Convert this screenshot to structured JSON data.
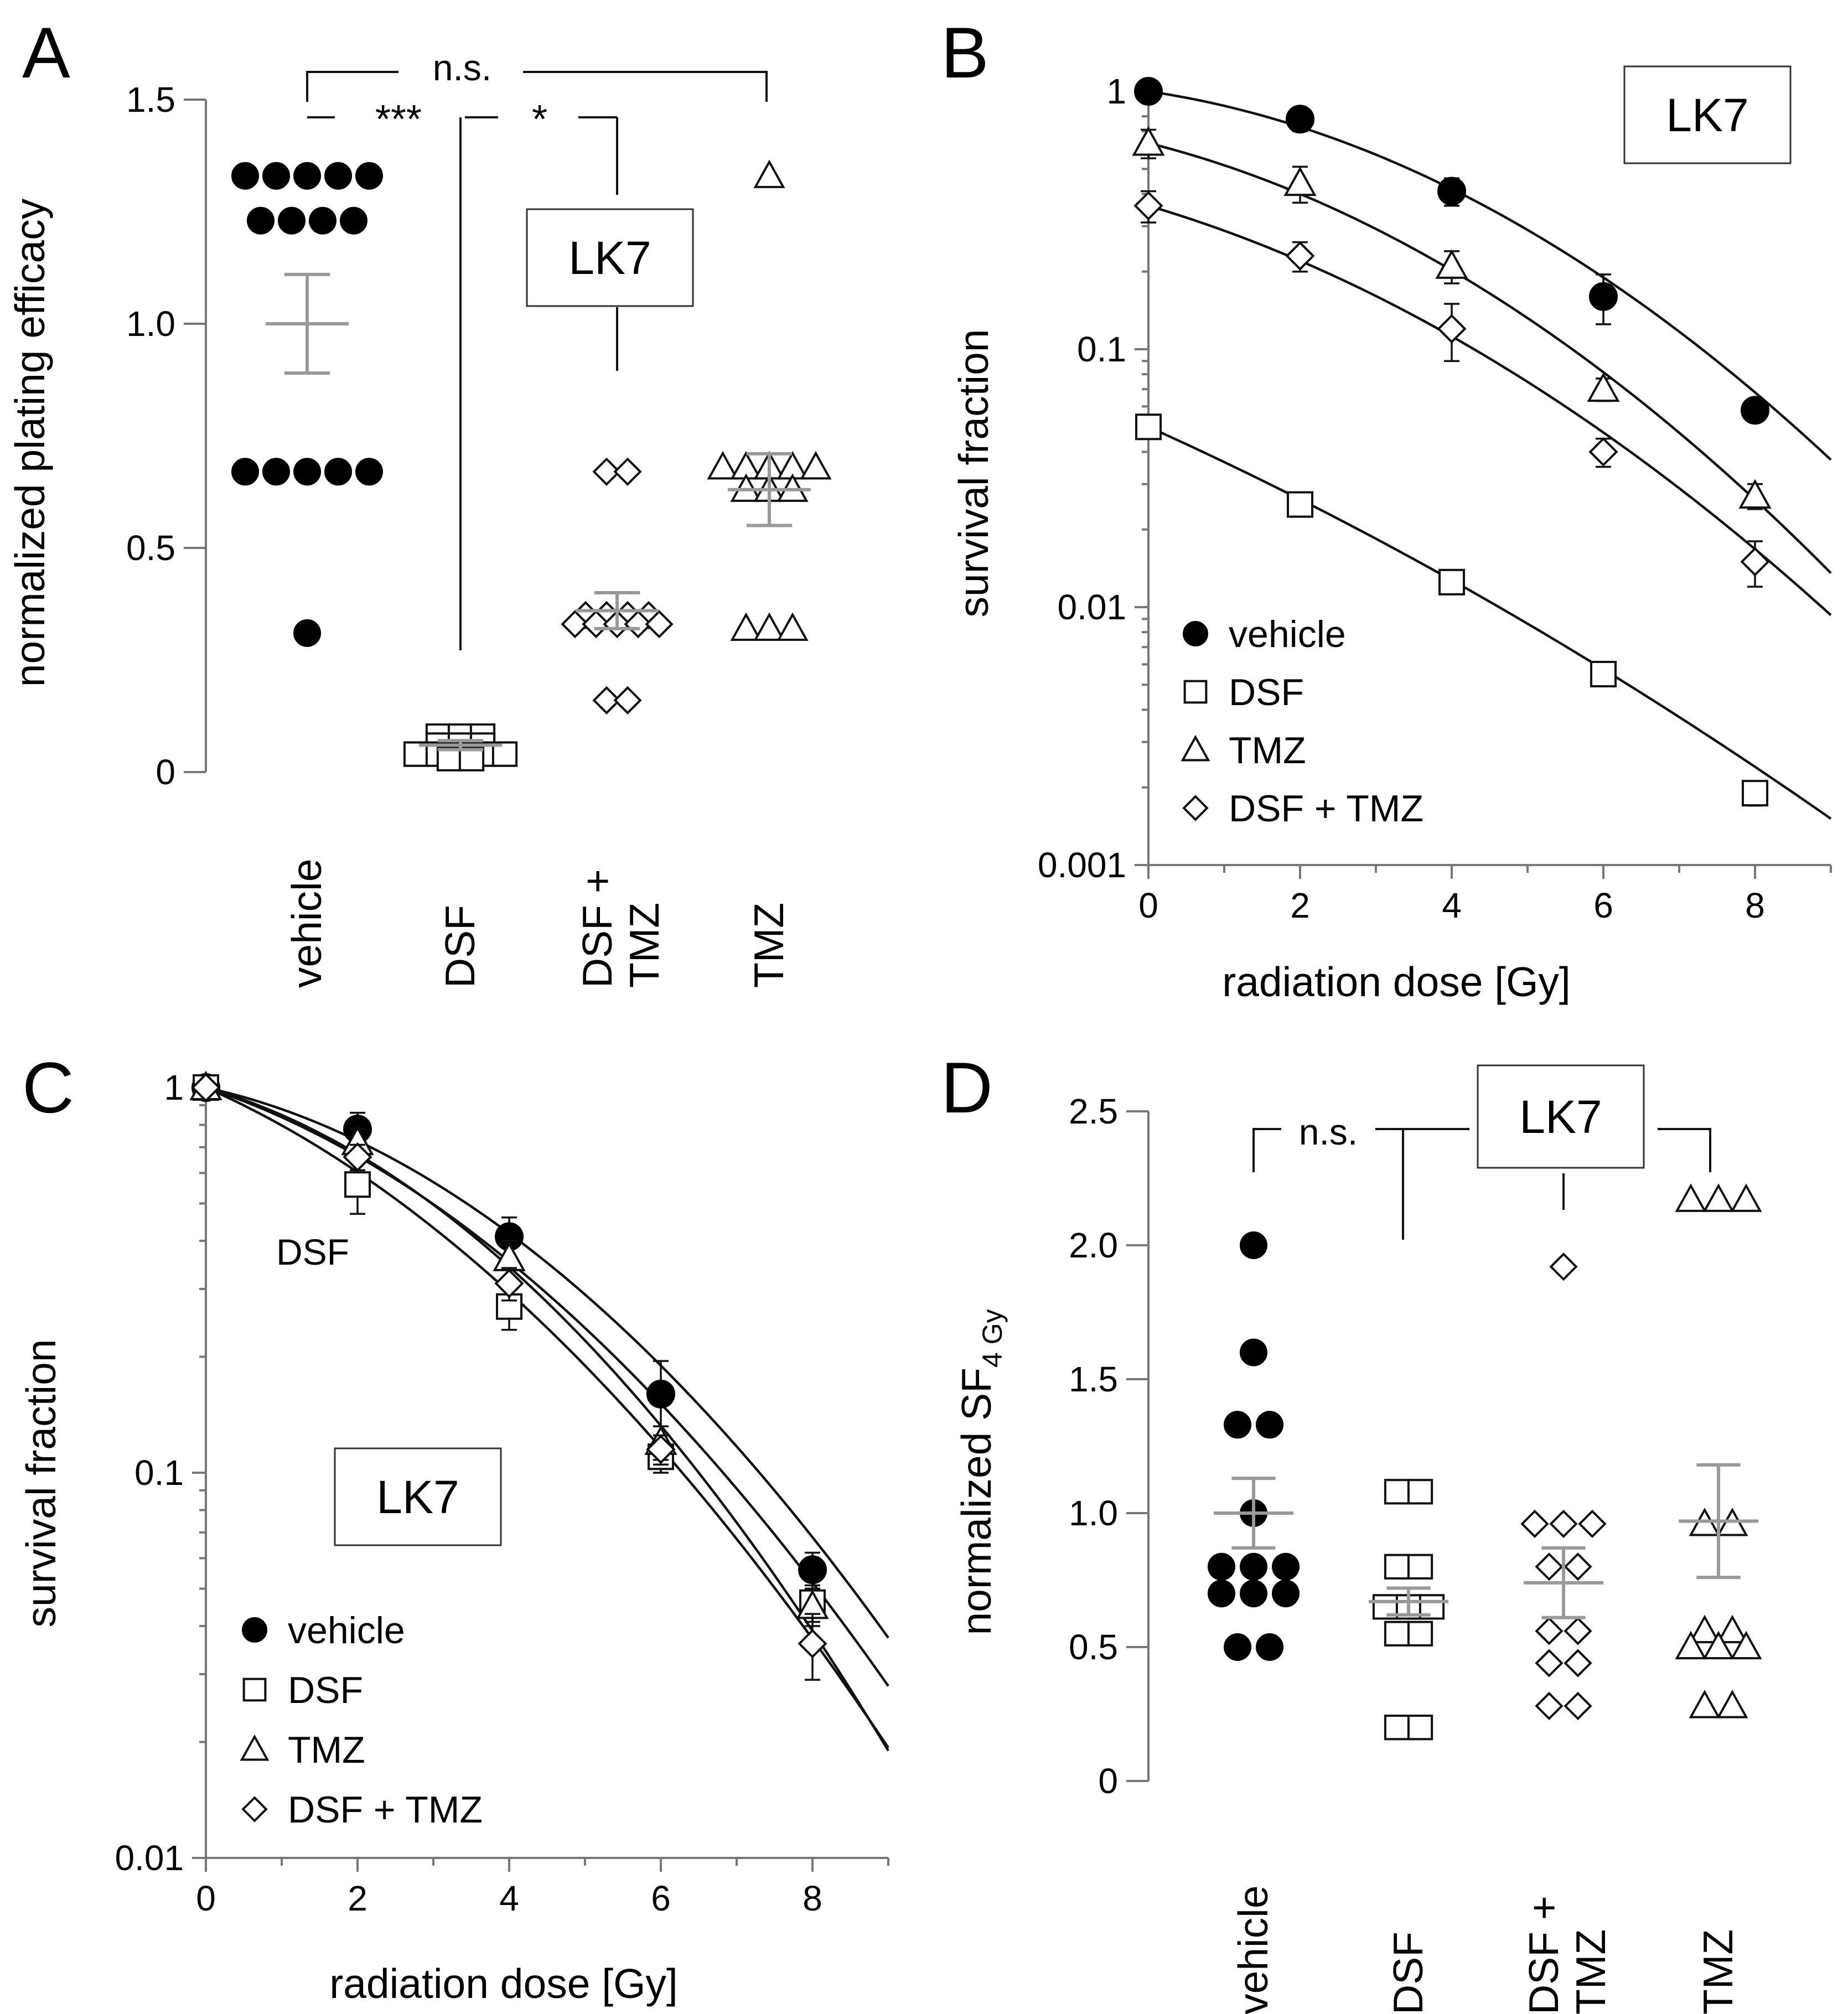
{
  "chart_data": [
    {
      "panel": "A",
      "type": "scatter",
      "cell_line": "LK7",
      "ylabel": "normalized plating efficacy",
      "ylim": [
        0,
        1.5
      ],
      "yticks": [
        {
          "v": 0,
          "label": "0"
        },
        {
          "v": 0.5,
          "label": "0.5"
        },
        {
          "v": 1.0,
          "label": "1.0"
        },
        {
          "v": 1.5,
          "label": "1.5"
        }
      ],
      "categories": [
        {
          "label": "vehicle",
          "marker": "circle",
          "values": [
            1.33,
            1.33,
            1.33,
            1.33,
            1.33,
            1.23,
            1.23,
            1.23,
            1.23,
            0.67,
            0.67,
            0.67,
            0.67,
            0.67,
            0.31
          ],
          "mean": 1.0,
          "sem": 0.11
        },
        {
          "label": "DSF",
          "marker": "square",
          "values": [
            0.08,
            0.08,
            0.08,
            0.06,
            0.06,
            0.06,
            0.04,
            0.04,
            0.04,
            0.04,
            0.04,
            0.03,
            0.03
          ],
          "mean": 0.06,
          "sem": 0.01
        },
        {
          "label": "DSF + TMZ",
          "marker": "diamond",
          "values": [
            0.67,
            0.67,
            0.35,
            0.35,
            0.35,
            0.35,
            0.33,
            0.33,
            0.33,
            0.33,
            0.33,
            0.16,
            0.16
          ],
          "mean": 0.36,
          "sem": 0.04
        },
        {
          "label": "TMZ",
          "marker": "triangle",
          "values": [
            1.33,
            0.68,
            0.68,
            0.68,
            0.68,
            0.68,
            0.63,
            0.63,
            0.63,
            0.32,
            0.32,
            0.32
          ],
          "mean": 0.63,
          "sem": 0.08
        }
      ],
      "annotations": [
        "n.s.",
        "***",
        "*"
      ]
    },
    {
      "panel": "B",
      "type": "line",
      "scale": "log",
      "cell_line": "LK7",
      "xlabel": "radiation dose [Gy]",
      "ylabel": "survival fraction",
      "xlim": [
        0,
        9
      ],
      "ylim": [
        0.001,
        1
      ],
      "xticks": [
        0,
        2,
        4,
        6,
        8
      ],
      "yticks": [
        {
          "v": 0.001,
          "label": "0.001"
        },
        {
          "v": 0.01,
          "label": "0.01"
        },
        {
          "v": 0.1,
          "label": "0.1"
        },
        {
          "v": 1,
          "label": "1"
        }
      ],
      "x": [
        0,
        2,
        4,
        6,
        8
      ],
      "series": [
        {
          "name": "vehicle",
          "marker": "circle",
          "values": [
            1.0,
            0.78,
            0.41,
            0.16,
            0.058
          ],
          "errors": [
            0.05,
            0.08,
            0.05,
            0.035,
            0.005
          ],
          "fit": {
            "a": 0.1,
            "b": 0.0295
          }
        },
        {
          "name": "DSF",
          "marker": "square",
          "values": [
            0.05,
            0.025,
            0.0125,
            0.0055,
            0.0019
          ],
          "errors": [
            0.003,
            0.002,
            0.001,
            0.0005,
            0.0002
          ],
          "fit": {
            "a": 0.305,
            "b": 0.0093,
            "s0": 0.05
          }
        },
        {
          "name": "TMZ",
          "marker": "triangle",
          "values": [
            0.63,
            0.44,
            0.21,
            0.07,
            0.027
          ],
          "errors": [
            0.08,
            0.07,
            0.03,
            0.007,
            0.003
          ],
          "fit": {
            "a": 0.17,
            "b": 0.0285,
            "s0": 0.63
          }
        },
        {
          "name": "DSF + TMZ",
          "marker": "diamond",
          "values": [
            0.36,
            0.23,
            0.12,
            0.04,
            0.015
          ],
          "errors": [
            0.05,
            0.03,
            0.03,
            0.005,
            0.003
          ],
          "fit": {
            "a": 0.2,
            "b": 0.0229,
            "s0": 0.36
          }
        }
      ]
    },
    {
      "panel": "C",
      "type": "line",
      "scale": "log",
      "cell_line": "LK7",
      "xlabel": "radiation dose [Gy]",
      "ylabel": "survival fraction",
      "xlim": [
        0,
        9
      ],
      "ylim": [
        0.01,
        1
      ],
      "xticks": [
        0,
        2,
        4,
        6,
        8
      ],
      "yticks": [
        {
          "v": 0.01,
          "label": "0.01"
        },
        {
          "v": 0.1,
          "label": "0.1"
        },
        {
          "v": 1,
          "label": "1"
        }
      ],
      "x": [
        0,
        2,
        4,
        6,
        8
      ],
      "series": [
        {
          "name": "vehicle",
          "marker": "circle",
          "values": [
            1.0,
            0.78,
            0.41,
            0.16,
            0.056
          ],
          "errors": [
            0.03,
            0.08,
            0.05,
            0.035,
            0.006
          ],
          "fit": {
            "a": 0.1,
            "b": 0.0295
          }
        },
        {
          "name": "DSF",
          "marker": "square",
          "values": [
            1.0,
            0.56,
            0.27,
            0.11,
            0.046
          ],
          "errors": [
            0.03,
            0.09,
            0.035,
            0.01,
            0.005
          ],
          "fit": {
            "a": 0.2,
            "b": 0.0265
          }
        },
        {
          "name": "TMZ",
          "marker": "triangle",
          "values": [
            1.0,
            0.72,
            0.36,
            0.12,
            0.045
          ],
          "errors": [
            0.03,
            0.06,
            0.04,
            0.012,
            0.005
          ],
          "fit": {
            "a": 0.13,
            "b": 0.0345
          }
        },
        {
          "name": "DSF + TMZ",
          "marker": "diamond",
          "values": [
            1.0,
            0.66,
            0.31,
            0.115,
            0.036
          ],
          "errors": [
            0.03,
            0.05,
            0.03,
            0.01,
            0.007
          ],
          "fit": {
            "a": 0.15,
            "b": 0.0275
          }
        }
      ],
      "annotations": [
        "DSF"
      ]
    },
    {
      "panel": "D",
      "type": "scatter",
      "cell_line": "LK7",
      "ylabel_main": "normalized SF",
      "ylabel_sub": "4 Gy",
      "ylim": [
        0,
        2.5
      ],
      "yticks": [
        {
          "v": 0,
          "label": "0"
        },
        {
          "v": 0.5,
          "label": "0.5"
        },
        {
          "v": 1.0,
          "label": "1.0"
        },
        {
          "v": 1.5,
          "label": "1.5"
        },
        {
          "v": 2.0,
          "label": "2.0"
        },
        {
          "v": 2.5,
          "label": "2.5"
        }
      ],
      "categories": [
        {
          "label": "vehicle",
          "marker": "circle",
          "values": [
            2.0,
            1.6,
            1.33,
            1.33,
            1.0,
            0.8,
            0.8,
            0.8,
            0.7,
            0.7,
            0.7,
            0.5,
            0.5
          ],
          "mean": 1.0,
          "sem": 0.13
        },
        {
          "label": "DSF",
          "marker": "square",
          "values": [
            1.08,
            1.08,
            0.8,
            0.8,
            0.65,
            0.65,
            0.65,
            0.55,
            0.55,
            0.2,
            0.2
          ],
          "mean": 0.67,
          "sem": 0.05
        },
        {
          "label": "DSF + TMZ",
          "marker": "diamond",
          "values": [
            1.92,
            0.96,
            0.96,
            0.96,
            0.8,
            0.8,
            0.56,
            0.56,
            0.44,
            0.44,
            0.28,
            0.28
          ],
          "mean": 0.74,
          "sem": 0.13
        },
        {
          "label": "TMZ",
          "marker": "triangle",
          "values": [
            2.17,
            2.17,
            2.17,
            0.96,
            0.96,
            0.56,
            0.56,
            0.5,
            0.5,
            0.5,
            0.28,
            0.28
          ],
          "mean": 0.97,
          "sem": 0.21
        }
      ],
      "annotations": [
        "n.s."
      ]
    }
  ],
  "panel_letters": [
    "A",
    "B",
    "C",
    "D"
  ],
  "legend_labels": [
    "vehicle",
    "DSF",
    "TMZ",
    "DSF + TMZ"
  ],
  "cell_line_label": "LK7",
  "colors": {
    "axis": "#777777",
    "stat": "#999999",
    "marks": "#111111"
  }
}
